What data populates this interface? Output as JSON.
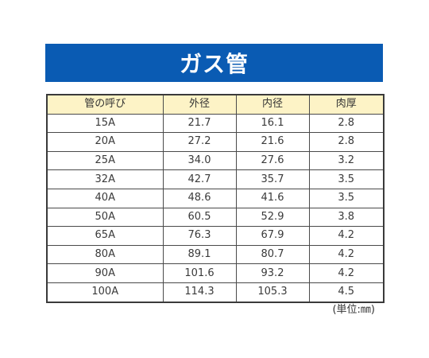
{
  "title": "ガス管",
  "colors": {
    "banner_bg": "#0a5bb3",
    "header_bg": "#fdf3c6"
  },
  "table": {
    "headers": [
      "管の呼び",
      "外径",
      "内径",
      "肉厚"
    ],
    "rows": [
      [
        "15A",
        "21.7",
        "16.1",
        "2.8"
      ],
      [
        "20A",
        "27.2",
        "21.6",
        "2.8"
      ],
      [
        "25A",
        "34.0",
        "27.6",
        "3.2"
      ],
      [
        "32A",
        "42.7",
        "35.7",
        "3.5"
      ],
      [
        "40A",
        "48.6",
        "41.6",
        "3.5"
      ],
      [
        "50A",
        "60.5",
        "52.9",
        "3.8"
      ],
      [
        "65A",
        "76.3",
        "67.9",
        "4.2"
      ],
      [
        "80A",
        "89.1",
        "80.7",
        "4.2"
      ],
      [
        "90A",
        "101.6",
        "93.2",
        "4.2"
      ],
      [
        "100A",
        "114.3",
        "105.3",
        "4.5"
      ]
    ]
  },
  "unit_note": "(単位:㎜)"
}
